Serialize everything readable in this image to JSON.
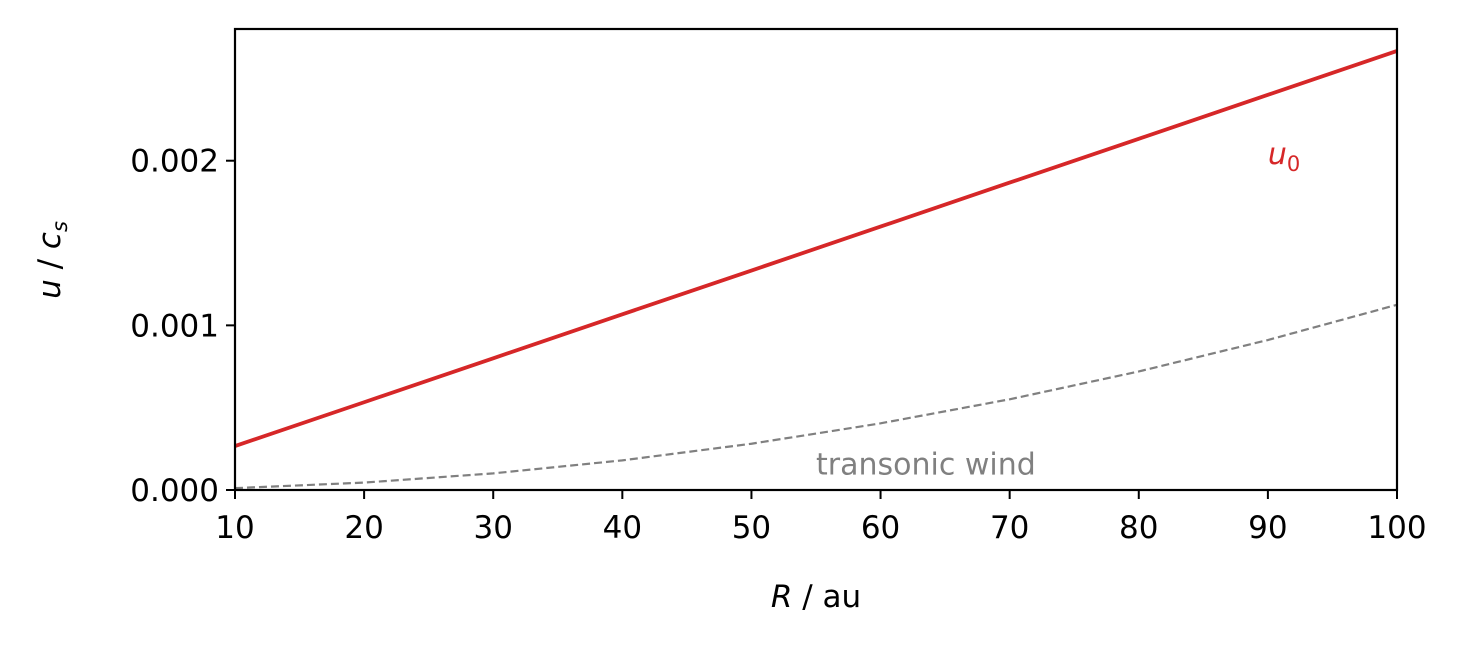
{
  "chart_data": {
    "type": "line",
    "xlabel": {
      "var": "R",
      "rest": " / au"
    },
    "ylabel": {
      "var": "u",
      "sep": " / ",
      "var2": "c",
      "sub": "s"
    },
    "xlim": [
      10,
      100
    ],
    "ylim": [
      0,
      0.0028
    ],
    "xticks": [
      10,
      20,
      30,
      40,
      50,
      60,
      70,
      80,
      90,
      100
    ],
    "xtick_labels": [
      "10",
      "20",
      "30",
      "40",
      "50",
      "60",
      "70",
      "80",
      "90",
      "100"
    ],
    "yticks": [
      0,
      0.001,
      0.002
    ],
    "ytick_labels": [
      "0.000",
      "0.001",
      "0.002"
    ],
    "grid": false,
    "series": [
      {
        "name": "u0",
        "label_main": "u",
        "label_sub": "0",
        "color": "#d62728",
        "style": "solid",
        "x": [
          10,
          20,
          30,
          40,
          50,
          60,
          70,
          80,
          90,
          100
        ],
        "y": [
          0.000267,
          0.000533,
          0.0008,
          0.001067,
          0.001333,
          0.0016,
          0.001867,
          0.002133,
          0.0024,
          0.002667
        ]
      },
      {
        "name": "transonic wind",
        "color": "#808080",
        "style": "dashed",
        "x": [
          10,
          20,
          30,
          40,
          50,
          60,
          70,
          80,
          90,
          100
        ],
        "y": [
          1.13e-05,
          4.5e-05,
          0.000101,
          0.00018,
          0.000281,
          0.000405,
          0.000551,
          0.00072,
          0.000911,
          0.001125
        ]
      }
    ],
    "annotations": [
      {
        "series": "u0",
        "text_main": "u",
        "text_sub": "0",
        "x": 90,
        "y": 0.00198,
        "color": "#d62728"
      },
      {
        "series": "transonic wind",
        "text": "transonic wind",
        "x": 55,
        "y": 9.5e-05,
        "color": "#808080"
      }
    ]
  }
}
